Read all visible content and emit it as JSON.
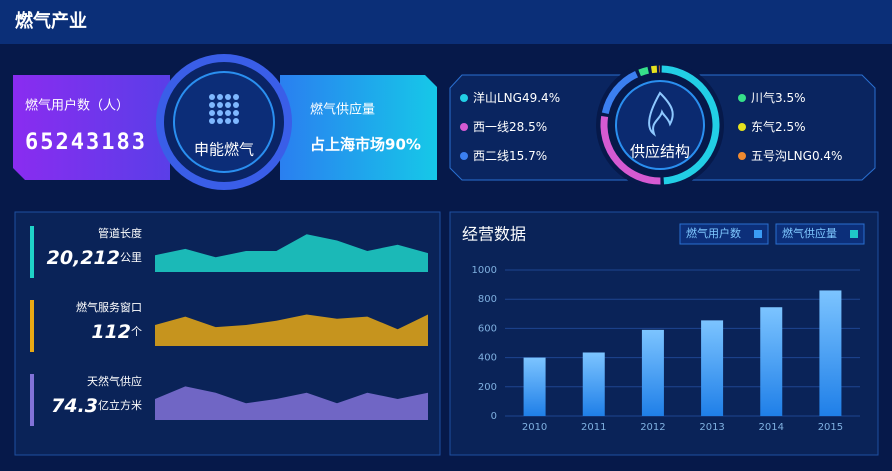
{
  "header": {
    "title": "燃气产业"
  },
  "summary": {
    "users_label": "燃气用户数（人）",
    "users_value": "65243183",
    "center": "申能燃气",
    "supply_label": "燃气供应量",
    "supply_value": "占上海市场90%"
  },
  "chart_data": [
    {
      "type": "area",
      "title": "管道长度",
      "value": "20,212",
      "unit": "公里",
      "color": "#1fd3c8",
      "values": [
        4,
        5.5,
        3.5,
        5,
        5,
        9,
        7.5,
        5,
        6.5,
        4.5
      ],
      "ylim": [
        0,
        10
      ]
    },
    {
      "type": "area",
      "title": "燃气服务窗口",
      "value": "112",
      "unit": "个",
      "color": "#e8a814",
      "values": [
        5,
        7,
        4.5,
        5,
        6,
        7.5,
        6.5,
        7,
        4,
        7.5
      ],
      "ylim": [
        0,
        10
      ]
    },
    {
      "type": "area",
      "title": "天然气供应",
      "value": "74.3",
      "unit": "亿立方米",
      "color": "#8272d8",
      "values": [
        5,
        8,
        6.5,
        4,
        5,
        6.5,
        4,
        6.5,
        5,
        6.5
      ],
      "ylim": [
        0,
        10
      ]
    },
    {
      "type": "pie",
      "title": "供应结构",
      "categories": [
        "洋山LNG",
        "西一线",
        "西二线",
        "川气",
        "东气",
        "五号沟LNG"
      ],
      "values": [
        49.4,
        28.5,
        15.7,
        3.5,
        2.5,
        0.4
      ],
      "value_labels": [
        "49.4%",
        "28.5%",
        "15.7%",
        "3.5%",
        "2.5%",
        "0.4%"
      ],
      "colors": [
        "#22cfe6",
        "#d55ad2",
        "#3b7ff0",
        "#36e08a",
        "#e6e21e",
        "#f08a30"
      ]
    },
    {
      "type": "bar",
      "title": "经营数据",
      "categories": [
        "2010",
        "2011",
        "2012",
        "2013",
        "2014",
        "2015"
      ],
      "series": [
        {
          "name": "燃气用户数",
          "color": "#3a9cf5",
          "values": [
            400,
            435,
            590,
            655,
            745,
            860
          ]
        },
        {
          "name": "燃气供应量",
          "color": "#1fc8c8",
          "values": [
            null,
            null,
            null,
            null,
            null,
            null
          ]
        }
      ],
      "ylim": [
        0,
        1000
      ],
      "yticks": [
        0,
        200,
        400,
        600,
        800,
        1000
      ],
      "grid": true
    }
  ]
}
